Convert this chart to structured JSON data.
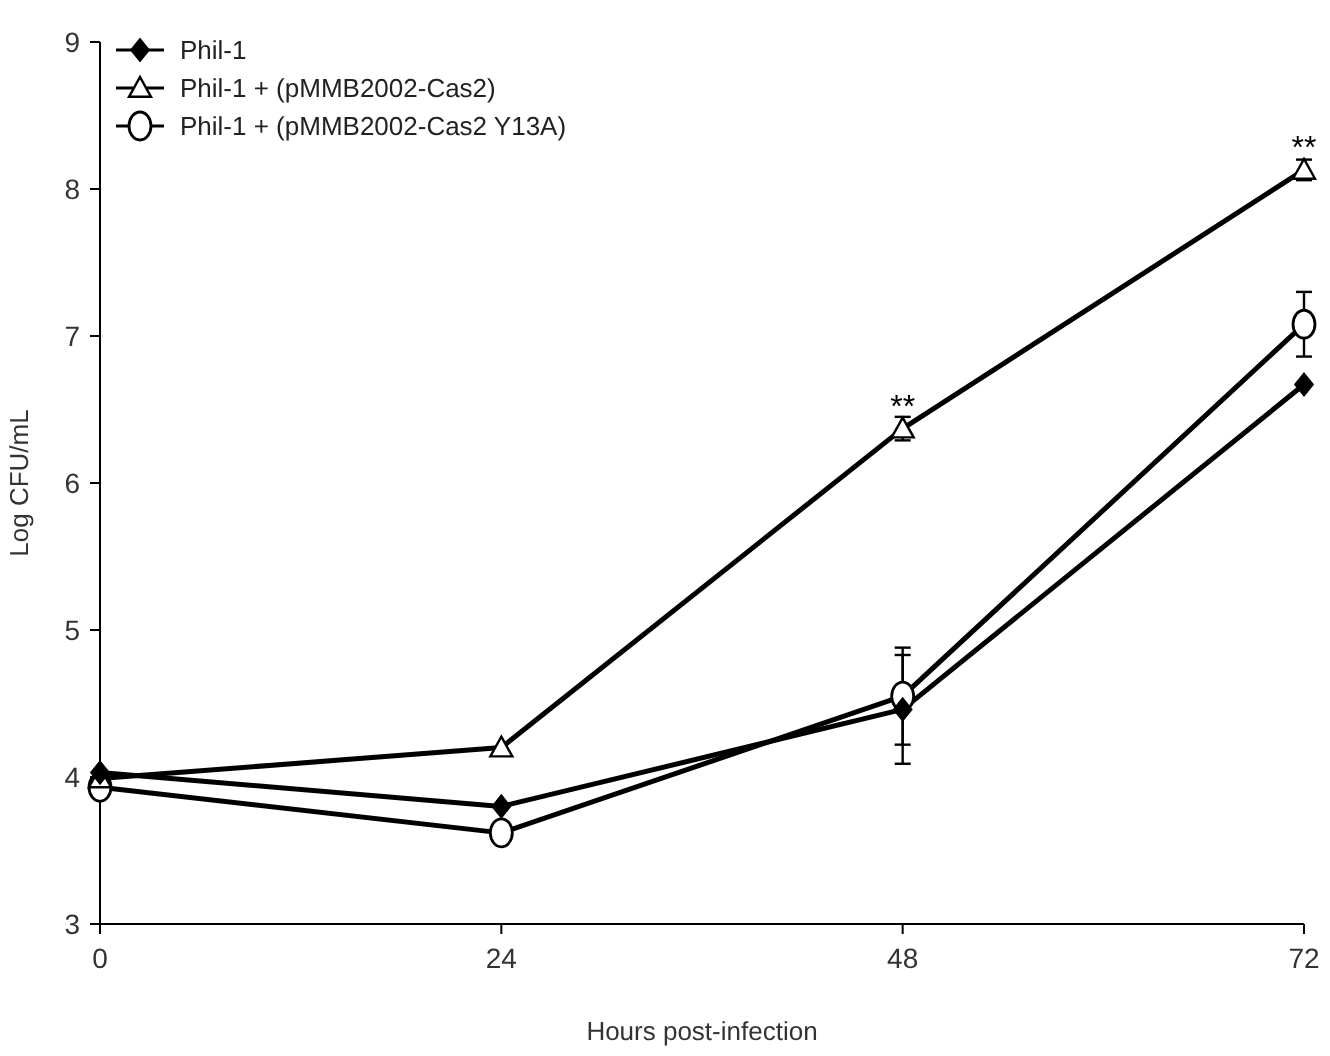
{
  "chart_data": {
    "type": "line",
    "xlabel": "Hours post-infection",
    "ylabel": "Log CFU/mL",
    "x": [
      0,
      24,
      48,
      72
    ],
    "xlim": [
      0,
      72
    ],
    "xticks": [
      0,
      24,
      48,
      72
    ],
    "ylim": [
      3,
      9
    ],
    "yticks": [
      3,
      4,
      5,
      6,
      7,
      8,
      9
    ],
    "legend": "top left",
    "grid": false,
    "line_style": "solid",
    "series": [
      {
        "name": "Phil-1",
        "color": "#000000",
        "marker": "diamond",
        "values": [
          4.03,
          3.8,
          4.46,
          6.67
        ],
        "errors": [
          null,
          null,
          0.37,
          null
        ]
      },
      {
        "name": "Phil-1 + (pMMB2002-Cas2)",
        "color": "#000000",
        "marker": "triangle",
        "values": [
          3.99,
          4.2,
          6.37,
          8.13
        ],
        "errors": [
          null,
          null,
          0.08,
          0.07
        ]
      },
      {
        "name": "Phil-1 + (pMMB2002-Cas2 Y13A)",
        "color": "#000000",
        "marker": "circle",
        "values": [
          3.93,
          3.62,
          4.55,
          7.08
        ],
        "errors": [
          null,
          null,
          0.33,
          0.22
        ]
      }
    ],
    "annotations": [
      {
        "text": "**",
        "x": 48,
        "y": 6.37
      },
      {
        "text": "**",
        "x": 72,
        "y": 8.13
      }
    ]
  }
}
